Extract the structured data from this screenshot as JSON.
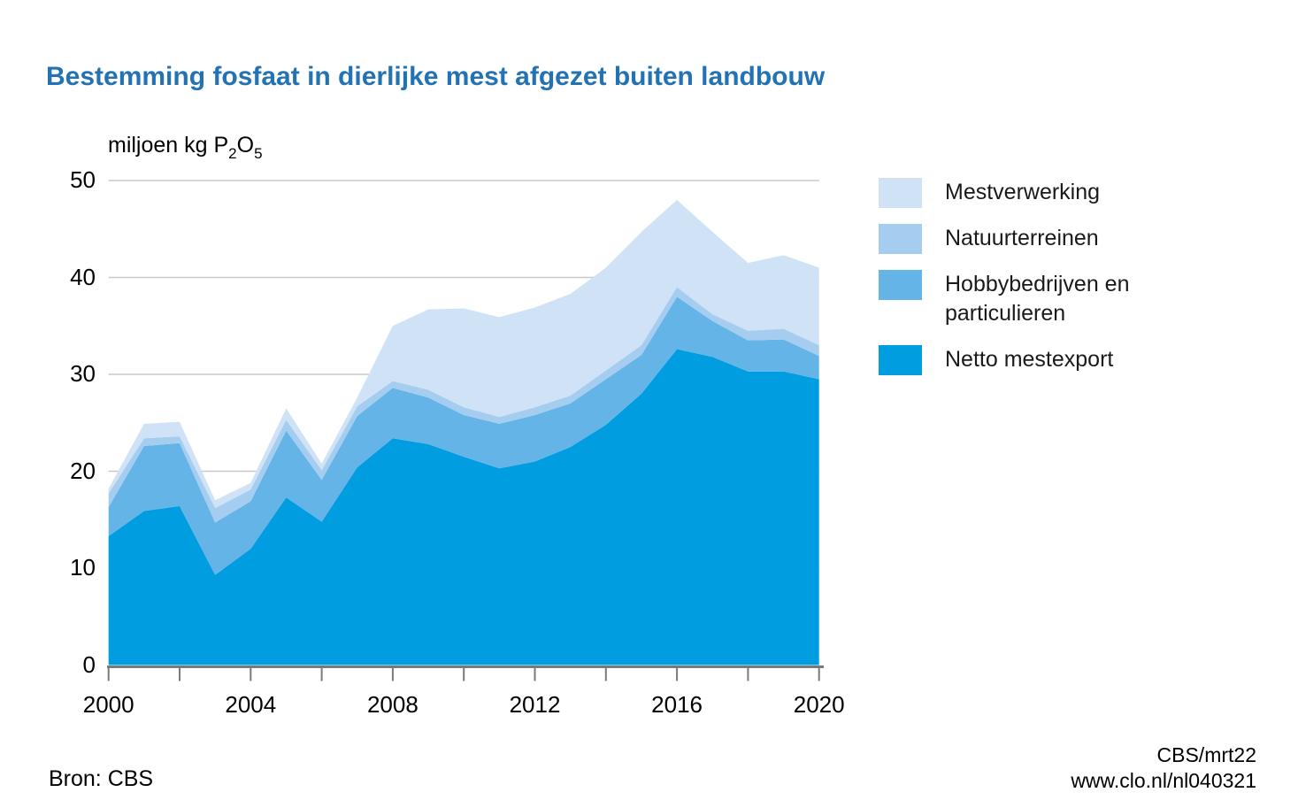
{
  "title": "Bestemming fosfaat in dierlijke mest afgezet buiten landbouw",
  "unit": {
    "prefix": "miljoen kg P",
    "sub1": "2",
    "mid": "O",
    "sub2": "5"
  },
  "colors": {
    "title": "#2272b4",
    "gridline": "#c9c9c9",
    "axis": "#7a7a7a",
    "mestverwerking": "#cfe2f6",
    "natuurterreinen": "#a5cdf0",
    "hobbybedrijven": "#65b4e8",
    "netto_mestexport": "#009de1"
  },
  "legend": {
    "items": [
      {
        "id": "mestverwerking",
        "label": "Mestverwerking",
        "color": "#cfe2f6"
      },
      {
        "id": "natuurterreinen",
        "label": "Natuurterreinen",
        "color": "#a5cdf0"
      },
      {
        "id": "hobbybedrijven",
        "label": "Hobbybedrijven en particulieren",
        "color": "#65b4e8"
      },
      {
        "id": "netto-mestexport",
        "label": "Netto mestexport",
        "color": "#009de1"
      }
    ]
  },
  "footer": {
    "source": "Bron: CBS",
    "credit_line1": "CBS/mrt22",
    "credit_line2": "www.clo.nl/nl040321"
  },
  "chart_data": {
    "type": "area",
    "stacked": true,
    "title": "Bestemming fosfaat in dierlijke mest afgezet buiten landbouw",
    "ylabel": "miljoen kg P2O5",
    "xlabel": "",
    "grid": "horizontal",
    "legend_position": "right",
    "ylim": [
      0,
      50
    ],
    "y_ticks": [
      0,
      10,
      20,
      30,
      40,
      50
    ],
    "x_minor_ticks": [
      2000,
      2002,
      2004,
      2006,
      2008,
      2010,
      2012,
      2014,
      2016,
      2018,
      2020
    ],
    "x_labels": [
      2000,
      2004,
      2008,
      2012,
      2016,
      2020
    ],
    "x": [
      2000,
      2001,
      2002,
      2003,
      2004,
      2005,
      2006,
      2007,
      2008,
      2009,
      2010,
      2011,
      2012,
      2013,
      2014,
      2015,
      2016,
      2017,
      2018,
      2019,
      2020
    ],
    "stack_order": "bottom-to-top",
    "series": [
      {
        "id": "netto-mestexport",
        "name": "Netto mestexport",
        "color": "#009de1",
        "values": [
          13.3,
          15.9,
          16.4,
          9.3,
          12.0,
          17.3,
          14.8,
          20.4,
          23.4,
          22.8,
          21.5,
          20.3,
          21.0,
          22.5,
          24.8,
          28.0,
          32.6,
          31.8,
          30.3,
          30.3,
          29.5
        ]
      },
      {
        "id": "hobbybedrijven",
        "name": "Hobbybedrijven en particulieren",
        "color": "#65b4e8",
        "values": [
          3.0,
          6.7,
          6.5,
          5.4,
          4.9,
          6.9,
          4.3,
          5.3,
          5.2,
          4.8,
          4.3,
          4.6,
          4.8,
          4.5,
          4.7,
          4.0,
          5.4,
          3.7,
          3.2,
          3.3,
          2.4
        ]
      },
      {
        "id": "natuurterreinen",
        "name": "Natuurterreinen",
        "color": "#a5cdf0",
        "values": [
          1.4,
          0.8,
          0.7,
          1.5,
          1.2,
          1.1,
          1.0,
          1.0,
          0.7,
          0.8,
          0.8,
          0.7,
          0.8,
          0.8,
          0.9,
          1.0,
          1.0,
          0.7,
          1.0,
          1.1,
          1.1
        ]
      },
      {
        "id": "mestverwerking",
        "name": "Mestverwerking",
        "color": "#cfe2f6",
        "values": [
          0.5,
          1.5,
          1.5,
          0.8,
          0.7,
          1.2,
          0.7,
          0.9,
          5.7,
          8.3,
          10.2,
          10.3,
          10.3,
          10.5,
          10.6,
          11.7,
          9.0,
          8.5,
          7.0,
          7.6,
          8.0
        ]
      }
    ]
  }
}
